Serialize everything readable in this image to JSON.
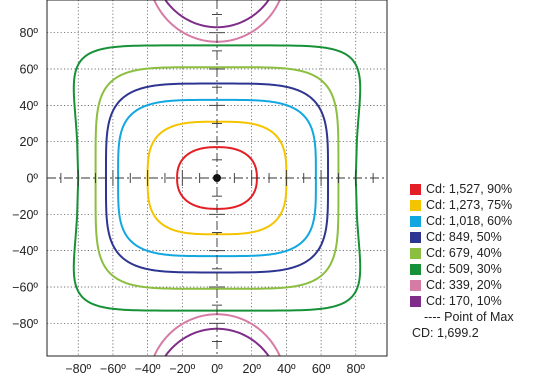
{
  "chart_data": {
    "type": "contour",
    "title": "",
    "xlabel": "",
    "ylabel": "",
    "xlim": [
      -98,
      98
    ],
    "ylim": [
      -98,
      98
    ],
    "grid": true,
    "x_ticks": [
      -80,
      -60,
      -40,
      -20,
      0,
      20,
      40,
      60,
      80
    ],
    "y_ticks": [
      80,
      60,
      40,
      20,
      0,
      -20,
      -40,
      -60,
      -80
    ],
    "x_tick_labels": [
      "−80º",
      "−60º",
      "−40º",
      "−20º",
      "0º",
      "20º",
      "40º",
      "60º",
      "80º"
    ],
    "y_tick_labels": [
      "80º",
      "60º",
      "40º",
      "20º",
      "0º",
      "−20º",
      "−40º",
      "−60º",
      "−80º"
    ],
    "point_of_max": [
      0,
      0
    ],
    "legend_position": "right",
    "series": [
      {
        "name": "Cd: 1,527, 90%",
        "color": "#e31e24",
        "half_width": 23,
        "half_height": 17,
        "n": 2.4
      },
      {
        "name": "Cd: 1,273, 75%",
        "color": "#f5c400",
        "half_width": 40,
        "half_height": 31,
        "n": 3.2
      },
      {
        "name": "Cd: 1,018, 60%",
        "color": "#12a7e0",
        "half_width": 57,
        "half_height": 43,
        "n": 4.0
      },
      {
        "name": "Cd: 849, 50%",
        "color": "#2e3591",
        "half_width": 64,
        "half_height": 52,
        "n": 4.2
      },
      {
        "name": "Cd: 679, 40%",
        "color": "#8cbe3f",
        "half_width": 70,
        "half_height": 61,
        "n": 5.0
      },
      {
        "name": "Cd: 509, 30%",
        "color": "#179137",
        "half_width": 88,
        "half_height": 73,
        "n": 6.5,
        "waist": 8
      },
      {
        "name": "Cd: 339, 20%",
        "color": "#d67ba4",
        "cap_center_y": 115,
        "cap_radius": 40
      },
      {
        "name": "Cd: 170, 10%",
        "color": "#7e2d88",
        "cap_center_y": 120,
        "cap_radius": 37
      }
    ],
    "point_of_max_label": "---- Point of Max",
    "max_value_label": "CD: 1,699.2"
  }
}
